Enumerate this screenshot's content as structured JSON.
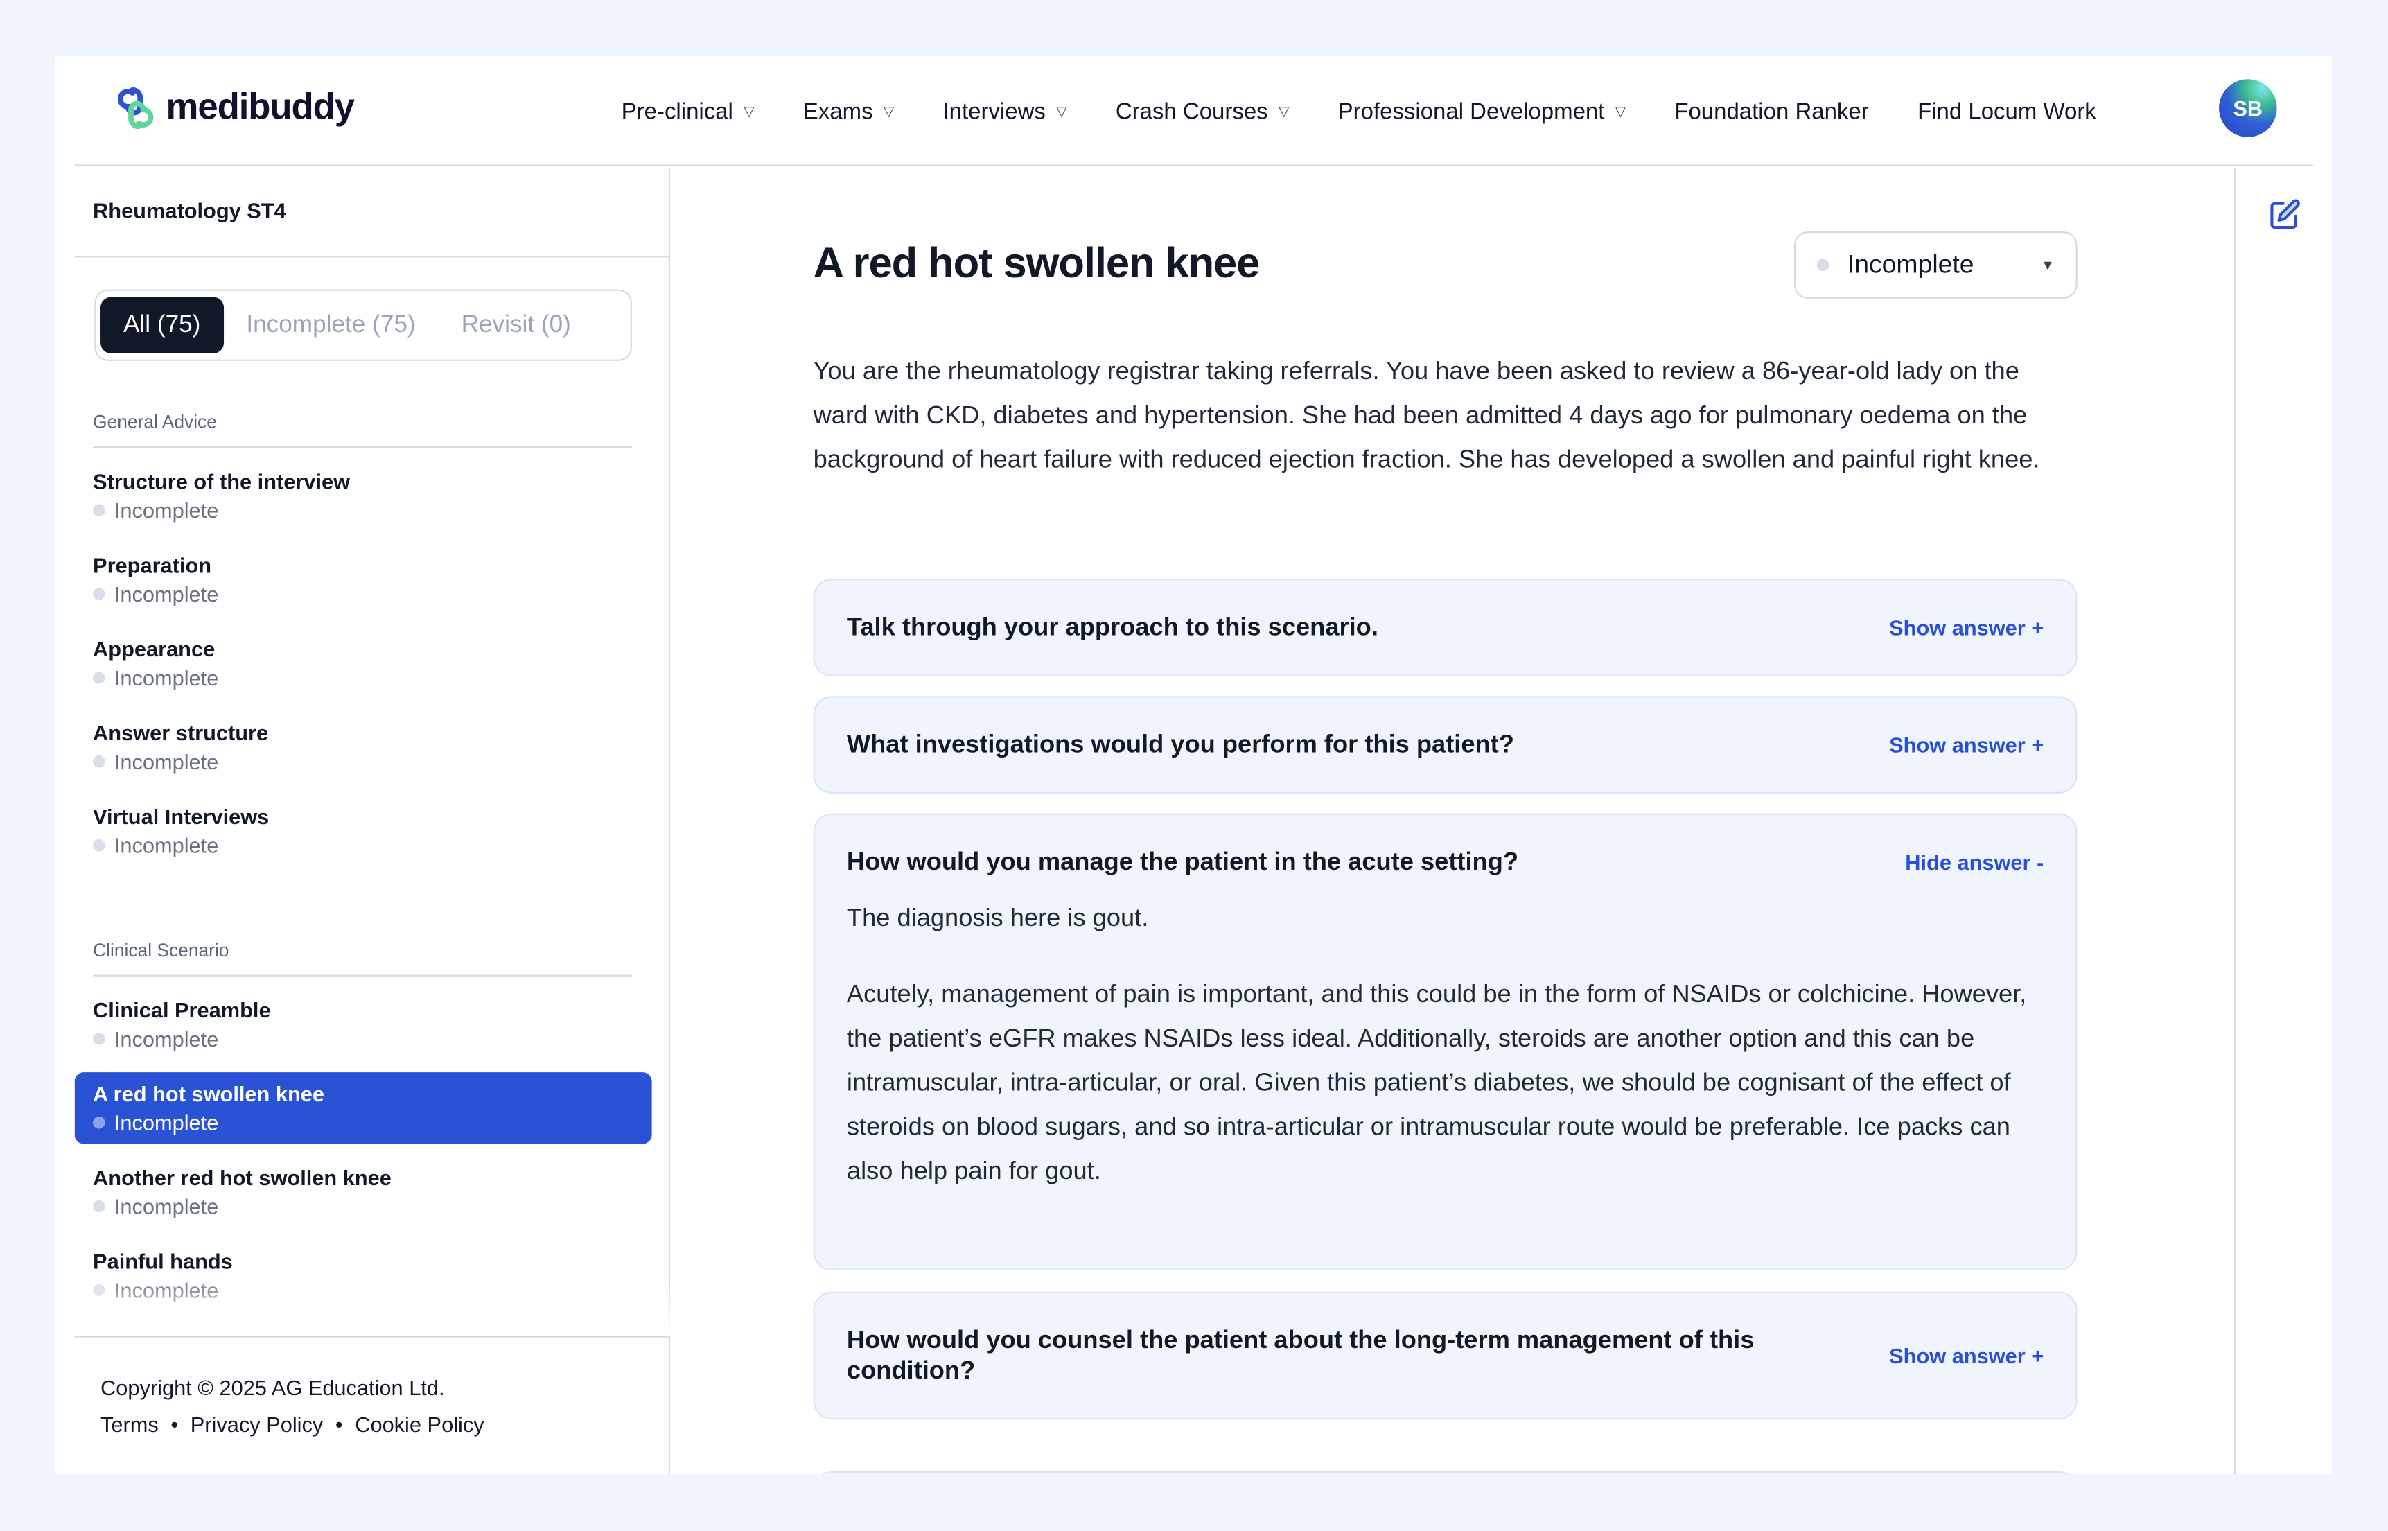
{
  "brand": {
    "name": "medibuddy",
    "colors": {
      "accent": "#2a52d4",
      "logo_blue": "#2f4fd6",
      "logo_green": "#5fd59a"
    }
  },
  "nav": {
    "items": [
      {
        "label": "Pre-clinical",
        "dropdown": true
      },
      {
        "label": "Exams",
        "dropdown": true
      },
      {
        "label": "Interviews",
        "dropdown": true
      },
      {
        "label": "Crash Courses",
        "dropdown": true
      },
      {
        "label": "Professional Development",
        "dropdown": true
      },
      {
        "label": "Foundation Ranker",
        "dropdown": false
      },
      {
        "label": "Find Locum Work",
        "dropdown": false
      }
    ],
    "avatar_initials": "SB"
  },
  "sidebar": {
    "title": "Rheumatology ST4",
    "tabs": [
      {
        "label": "All (75)",
        "active": true
      },
      {
        "label": "Incomplete (75)"
      },
      {
        "label": "Revisit (0)"
      }
    ],
    "sections": [
      {
        "heading": "General Advice",
        "items": [
          {
            "title": "Structure of the interview",
            "status": "Incomplete"
          },
          {
            "title": "Preparation",
            "status": "Incomplete"
          },
          {
            "title": "Appearance",
            "status": "Incomplete"
          },
          {
            "title": "Answer structure",
            "status": "Incomplete"
          },
          {
            "title": "Virtual Interviews",
            "status": "Incomplete"
          }
        ]
      },
      {
        "heading": "Clinical Scenario",
        "items": [
          {
            "title": "Clinical Preamble",
            "status": "Incomplete"
          },
          {
            "title": "A red hot swollen knee",
            "status": "Incomplete",
            "active": true
          },
          {
            "title": "Another red hot swollen knee",
            "status": "Incomplete"
          },
          {
            "title": "Painful hands",
            "status": "Incomplete"
          }
        ]
      }
    ]
  },
  "footer": {
    "copyright": "Copyright © 2025 AG Education Ltd.",
    "links": [
      "Terms",
      "Privacy Policy",
      "Cookie Policy"
    ],
    "separator": "•"
  },
  "main": {
    "title": "A red hot swollen knee",
    "status_select": "Incomplete",
    "intro": "You are the rheumatology registrar taking referrals. You have been asked to review a 86-year-old lady on the ward with CKD, diabetes and hypertension. She had been admitted 4 days ago for pulmonary oedema on the background of heart failure with reduced ejection fraction. She has developed a swollen and painful right knee.",
    "questions": [
      {
        "q": "Talk through your approach to this scenario.",
        "toggle": "Show answer +"
      },
      {
        "q": "What investigations would you perform for this patient?",
        "toggle": "Show answer +"
      },
      {
        "q": "How would you manage the patient in the acute setting?",
        "toggle": "Hide answer -",
        "answer": [
          "The diagnosis here is gout.",
          "Acutely, management of pain is important, and this could be in the form of NSAIDs or colchicine. However, the patient’s eGFR makes NSAIDs less ideal. Additionally, steroids are another option and this can be intramuscular, intra-articular, or oral. Given this patient’s diabetes, we should be cognisant of the effect of steroids on blood sugars, and so intra-articular or intramuscular route would be preferable. Ice packs can also help pain for gout."
        ]
      },
      {
        "q": "How would you counsel the patient about the long-term management of this condition?",
        "toggle": "Show answer +"
      }
    ]
  }
}
